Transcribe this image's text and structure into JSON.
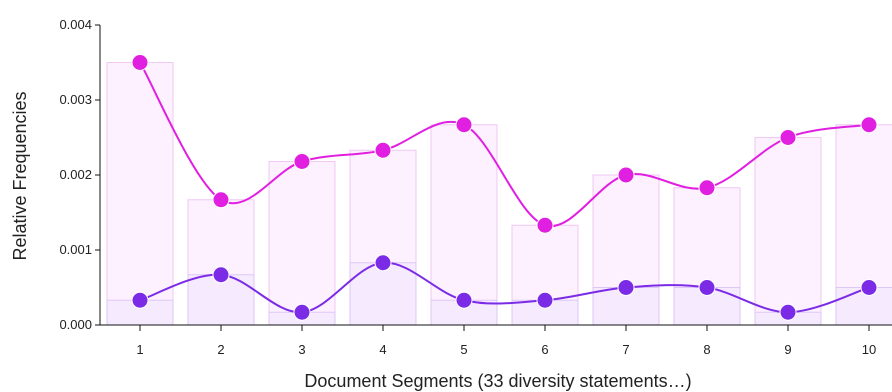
{
  "chart_data": {
    "type": "line",
    "title": "",
    "xlabel": "Document Segments (33 diversity statements…)",
    "ylabel": "Relative Frequencies",
    "categories": [
      "1",
      "2",
      "3",
      "4",
      "5",
      "6",
      "7",
      "8",
      "9",
      "10"
    ],
    "ylim": [
      0,
      0.004
    ],
    "yticks": [
      "0.000",
      "0.001",
      "0.002",
      "0.003",
      "0.004"
    ],
    "grid": false,
    "legend": "none",
    "series": [
      {
        "color": "#e11fe1",
        "values": [
          0.0035,
          0.00167,
          0.00218,
          0.00233,
          0.00267,
          0.00133,
          0.002,
          0.00183,
          0.0025,
          0.00267
        ]
      },
      {
        "color": "#7b2be6",
        "values": [
          0.00033,
          0.00067,
          0.00017,
          0.00083,
          0.00033,
          0.00033,
          0.0005,
          0.0005,
          0.00017,
          0.0005
        ]
      }
    ],
    "bars": {
      "values": [
        0.0035,
        0.00167,
        0.00218,
        0.00233,
        0.00267,
        0.00133,
        0.002,
        0.00183,
        0.0025,
        0.00267
      ],
      "overlay_values": [
        0.00033,
        0.00067,
        0.00017,
        0.00083,
        0.00033,
        0.00033,
        0.0005,
        0.0005,
        0.00017,
        0.0005
      ]
    }
  }
}
